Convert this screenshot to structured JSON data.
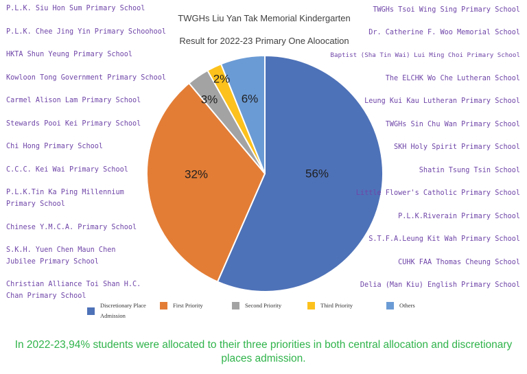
{
  "chart_data": {
    "type": "pie",
    "title": "TWGHs Liu Yan Tak Memorial Kindergarten",
    "subtitle": "Result for 2022-23 Primary One Aloocation",
    "slices": [
      {
        "label": "Discretionary Place Admission",
        "value": 56,
        "display": "56%",
        "color": "#4e72b8"
      },
      {
        "label": "First Priority",
        "value": 32,
        "display": "32%",
        "color": "#e37d36"
      },
      {
        "label": "Second Priority",
        "value": 3,
        "display": "3%",
        "color": "#a3a3a3"
      },
      {
        "label": "Third Priority",
        "value": 2,
        "display": "2%",
        "color": "#fcc11c"
      },
      {
        "label": "Others",
        "value": 6,
        "display": "6%",
        "color": "#6b9bd5"
      }
    ],
    "legend_position": "bottom"
  },
  "legend": {
    "discretionary": "Discretionary Place Admission",
    "first": "First Priority",
    "second": "Second Priority",
    "third": "Third Priority",
    "others": "Others"
  },
  "left_schools": [
    "P.L.K. Siu Hon Sum Primary School",
    "P.L.K. Chee Jing Yin Primary Schoohool",
    "HKTA Shun Yeung Primary School",
    "Kowloon Tong Government Primary School",
    "Carmel Alison Lam Primary School",
    "Stewards Pooi Kei Primary School",
    "Chi Hong Primary School",
    "C.C.C. Kei Wai Primary School",
    "P.L.K.Tin Ka Ping Millennium Primary School",
    "Chinese Y.M.C.A. Primary School",
    "S.K.H. Yuen Chen Maun Chen Jubilee Primary School",
    "Christian Alliance Toi Shan H.C. Chan Primary School"
  ],
  "right_schools": [
    "TWGHs Tsoi Wing Sing Primary School",
    "Dr. Catherine F. Woo Memorial School",
    "Baptist (Sha Tin Wai) Lui Ming Choi Primary School",
    "The ELCHK Wo Che Lutheran School",
    "Leung Kui Kau Lutheran Primary School",
    "TWGHs Sin Chu Wan Primary School",
    "SKH Holy Spirit Primary School",
    "Shatin Tsung Tsin School",
    "Little Flower's Catholic Primary School",
    "P.L.K.Riverain Primary School",
    "S.T.F.A.Leung Kit Wah Primary School",
    "CUHK FAA Thomas Cheung School",
    "Delia (Man Kiu) English Primary School"
  ],
  "footer": "In 2022-23,94% students were allocated to their three priorities in both central allocation and discretionary places admission."
}
